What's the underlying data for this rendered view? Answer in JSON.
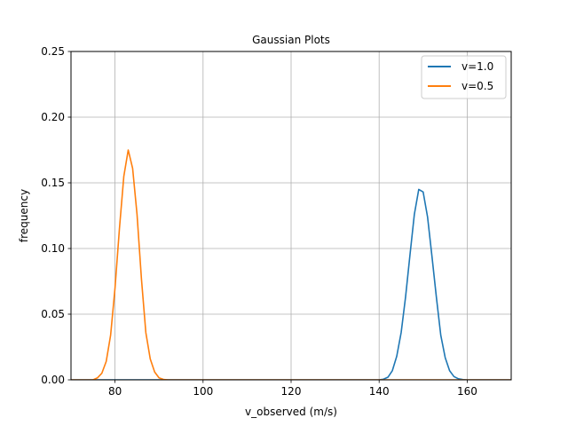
{
  "chart_data": {
    "type": "line",
    "title": "Gaussian Plots",
    "xlabel": "v_observed (m/s)",
    "ylabel": "frequency",
    "xlim": [
      70,
      170
    ],
    "ylim": [
      0,
      0.25
    ],
    "x_ticks": [
      80,
      100,
      120,
      140,
      160
    ],
    "x_tick_labels": [
      "80",
      "100",
      "120",
      "140",
      "160"
    ],
    "y_ticks": [
      0.0,
      0.05,
      0.1,
      0.15,
      0.2,
      0.25
    ],
    "y_tick_labels": [
      "0.00",
      "0.05",
      "0.10",
      "0.15",
      "0.20",
      "0.25"
    ],
    "grid": true,
    "legend_position": "top-right",
    "series": [
      {
        "name": "v=1.0",
        "color": "#1f77b4",
        "points": [
          [
            70,
            0
          ],
          [
            140,
            0
          ],
          [
            141,
            0.0005
          ],
          [
            142,
            0.002
          ],
          [
            143,
            0.007
          ],
          [
            144,
            0.018
          ],
          [
            145,
            0.036
          ],
          [
            146,
            0.063
          ],
          [
            147,
            0.095
          ],
          [
            148,
            0.126
          ],
          [
            149,
            0.145
          ],
          [
            150,
            0.143
          ],
          [
            151,
            0.124
          ],
          [
            152,
            0.094
          ],
          [
            153,
            0.063
          ],
          [
            154,
            0.034
          ],
          [
            155,
            0.017
          ],
          [
            156,
            0.007
          ],
          [
            157,
            0.0025
          ],
          [
            158,
            0.0008
          ],
          [
            159,
            0.0002
          ],
          [
            160,
            0
          ],
          [
            170,
            0
          ]
        ]
      },
      {
        "name": "v=0.5",
        "color": "#ff7f0e",
        "points": [
          [
            70,
            0
          ],
          [
            75,
            0
          ],
          [
            76,
            0.0015
          ],
          [
            77,
            0.005
          ],
          [
            78,
            0.014
          ],
          [
            79,
            0.034
          ],
          [
            80,
            0.07
          ],
          [
            81,
            0.115
          ],
          [
            82,
            0.155
          ],
          [
            83,
            0.175
          ],
          [
            84,
            0.161
          ],
          [
            85,
            0.126
          ],
          [
            86,
            0.077
          ],
          [
            87,
            0.036
          ],
          [
            88,
            0.016
          ],
          [
            89,
            0.006
          ],
          [
            90,
            0.0015
          ],
          [
            91,
            0.0003
          ],
          [
            92,
            0
          ],
          [
            170,
            0
          ]
        ]
      }
    ]
  }
}
